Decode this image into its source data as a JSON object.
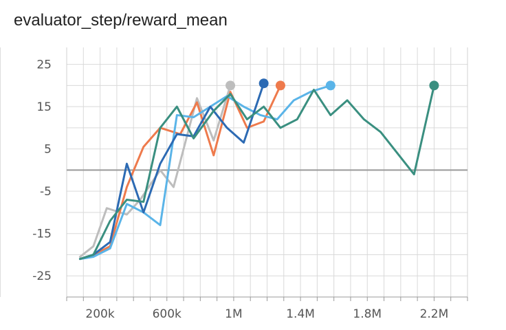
{
  "chart_data": {
    "type": "line",
    "title": "evaluator_step/reward_mean",
    "xlabel": "",
    "ylabel": "",
    "xlim": [
      0,
      2400000
    ],
    "ylim": [
      -30,
      29
    ],
    "y_ticks": [
      25,
      15,
      5,
      -5,
      -15,
      -25
    ],
    "y_tick_labels": [
      "25",
      "15",
      "5",
      "-5",
      "-15",
      "-25"
    ],
    "x_ticks": [
      200000,
      600000,
      1000000,
      1400000,
      1800000,
      2200000
    ],
    "x_tick_labels": [
      "200k",
      "600k",
      "1M",
      "1.4M",
      "1.8M",
      "2.2M"
    ],
    "grid": true,
    "zero_line": true,
    "series": [
      {
        "color": "#bdbdbd",
        "x": [
          80000,
          160000,
          240000,
          280000,
          360000,
          440000,
          560000,
          640000,
          780000,
          880000,
          980000
        ],
        "y": [
          -20.5,
          -18,
          -9,
          -9.5,
          -10.5,
          -7,
          0,
          -4,
          17,
          7,
          20
        ]
      },
      {
        "color": "#ee7a4c",
        "x": [
          80000,
          140000,
          260000,
          360000,
          460000,
          560000,
          680000,
          780000,
          880000,
          980000,
          1080000,
          1180000,
          1280000
        ],
        "y": [
          -21,
          -20.5,
          -18,
          -4,
          5.5,
          10,
          8.5,
          16,
          3.5,
          18.5,
          10,
          11.5,
          20
        ]
      },
      {
        "color": "#5ab4e8",
        "x": [
          80000,
          160000,
          260000,
          360000,
          460000,
          560000,
          660000,
          760000,
          860000,
          960000,
          1060000,
          1160000,
          1260000,
          1360000,
          1460000,
          1580000
        ],
        "y": [
          -21,
          -20.5,
          -18.5,
          -8,
          -10,
          -13,
          13,
          12.5,
          15,
          17.5,
          15,
          13,
          12,
          16.5,
          18.5,
          20
        ]
      },
      {
        "color": "#2c6ab3",
        "x": [
          80000,
          160000,
          260000,
          360000,
          460000,
          560000,
          660000,
          760000,
          860000,
          960000,
          1060000,
          1180000
        ],
        "y": [
          -21,
          -20,
          -17,
          1.5,
          -10,
          1.5,
          8.5,
          8,
          15,
          10,
          6.5,
          20.5
        ]
      },
      {
        "color": "#3a8f80",
        "x": [
          80000,
          160000,
          260000,
          360000,
          460000,
          560000,
          660000,
          760000,
          880000,
          980000,
          1080000,
          1180000,
          1280000,
          1380000,
          1480000,
          1580000,
          1680000,
          1780000,
          1880000,
          2080000,
          2200000
        ],
        "y": [
          -21,
          -20,
          -12,
          -7,
          -7.5,
          10,
          15,
          7.5,
          14,
          18,
          12,
          15,
          10,
          12,
          19,
          13,
          16.5,
          12,
          9,
          -1,
          20
        ]
      }
    ]
  }
}
